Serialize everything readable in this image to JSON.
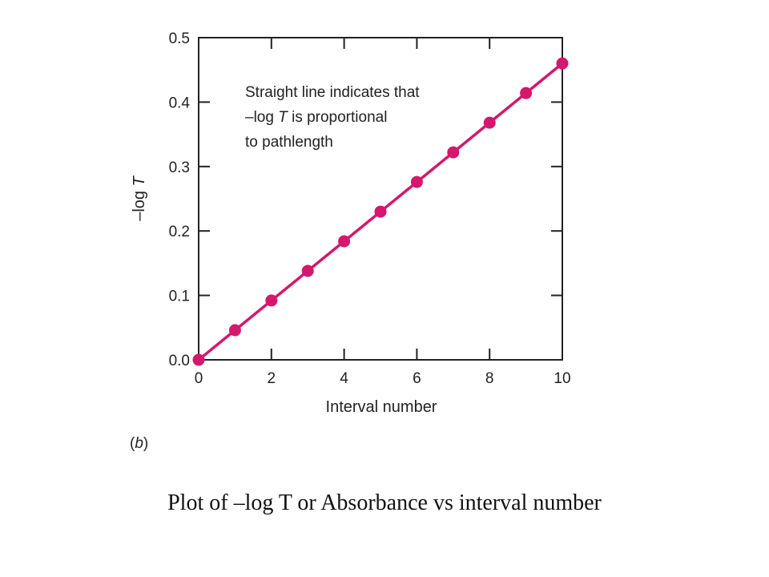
{
  "chart_data": {
    "type": "scatter",
    "xlabel": "Interval number",
    "ylabel_prefix": "–log ",
    "ylabel_var": "T",
    "xlim": [
      0,
      10
    ],
    "ylim": [
      0.0,
      0.5
    ],
    "x_ticks": [
      0,
      2,
      4,
      6,
      8,
      10
    ],
    "x_tick_labels": [
      "0",
      "2",
      "4",
      "6",
      "8",
      "10"
    ],
    "y_ticks": [
      0.0,
      0.1,
      0.2,
      0.3,
      0.4,
      0.5
    ],
    "y_tick_labels": [
      "0.0",
      "0.1",
      "0.2",
      "0.3",
      "0.4",
      "0.5"
    ],
    "grid": false,
    "series": [
      {
        "x": [
          0,
          1,
          2,
          3,
          4,
          5,
          6,
          7,
          8,
          9,
          10
        ],
        "y": [
          0.0,
          0.046,
          0.092,
          0.138,
          0.184,
          0.23,
          0.276,
          0.322,
          0.368,
          0.414,
          0.46
        ],
        "color": "#d6176e",
        "fit_line": true
      }
    ],
    "annotation": {
      "line1": "Straight line indicates that",
      "line2_prefix": "–log ",
      "line2_var": "T",
      "line2_suffix": " is proportional",
      "line3": "to pathlength"
    },
    "panel_label": {
      "open": "(",
      "letter": "b",
      "close": ")"
    }
  },
  "caption": "Plot of –log T or Absorbance vs interval number"
}
